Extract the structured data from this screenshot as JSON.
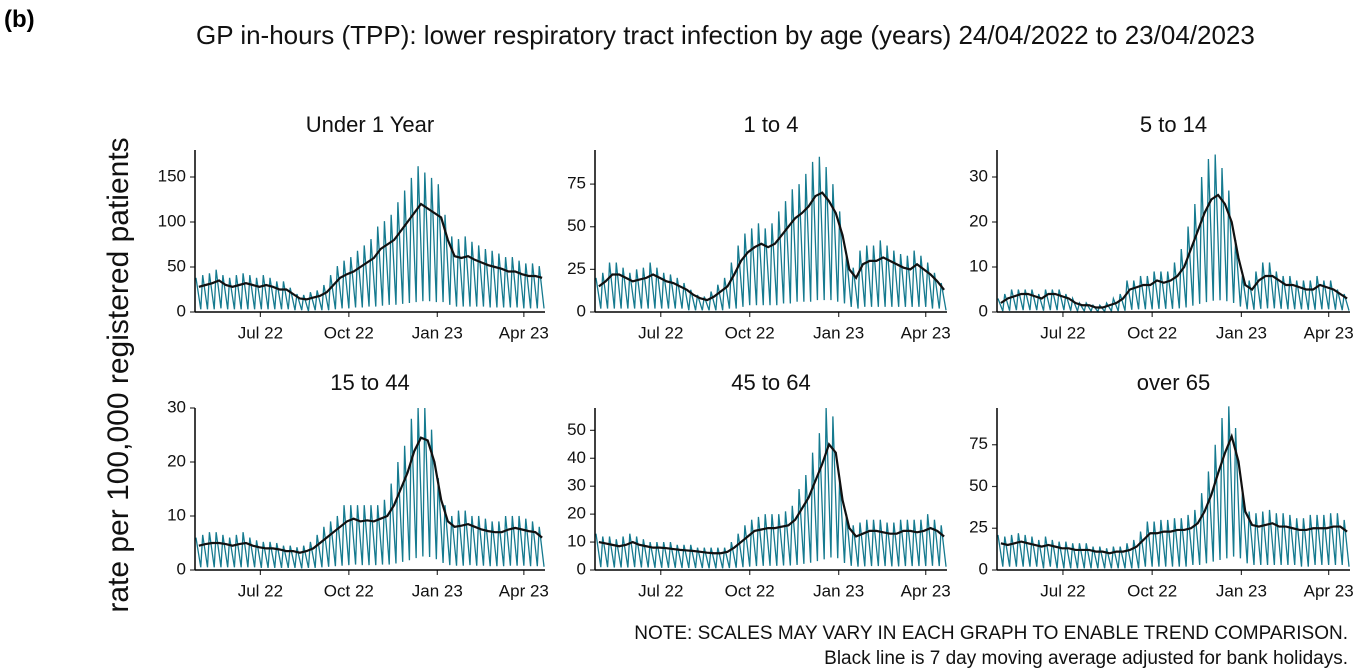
{
  "chart_data": {
    "type": "line",
    "panel_label": "(b)",
    "title": "GP in-hours (TPP): lower respiratory tract infection by age (years) 24/04/2022 to 23/04/2023",
    "ylabel": "rate per 100,000 registered patients",
    "notes": [
      "NOTE: SCALES MAY VARY IN EACH GRAPH TO ENABLE TREND COMPARISON.",
      "Black line is 7 day moving average adjusted for bank holidays."
    ],
    "daily_color": "#157a8f",
    "average_color": "#111111",
    "xlim": [
      0,
      364
    ],
    "xticks": [
      {
        "value": 68,
        "label": "Jul 22"
      },
      {
        "value": 160,
        "label": "Oct 22"
      },
      {
        "value": 252,
        "label": "Jan 23"
      },
      {
        "value": 342,
        "label": "Apr 23"
      }
    ],
    "x_daily": [
      1,
      6,
      8,
      13,
      15,
      20,
      22,
      27,
      29,
      34,
      36,
      41,
      43,
      48,
      50,
      55,
      57,
      62,
      64,
      69,
      71,
      76,
      78,
      83,
      85,
      90,
      92,
      97,
      99,
      104,
      106,
      111,
      113,
      118,
      120,
      125,
      127,
      132,
      134,
      139,
      141,
      146,
      148,
      153,
      155,
      160,
      162,
      167,
      169,
      174,
      176,
      181,
      183,
      188,
      190,
      195,
      197,
      202,
      204,
      209,
      211,
      216,
      218,
      223,
      225,
      230,
      232,
      237,
      239,
      244,
      246,
      251,
      253,
      258,
      260,
      265,
      267,
      272,
      274,
      279,
      281,
      286,
      288,
      293,
      295,
      300,
      302,
      307,
      309,
      314,
      316,
      321,
      323,
      328,
      330,
      335,
      337,
      342,
      344,
      349,
      351,
      356,
      358,
      363
    ],
    "x_weekly": [
      4,
      11,
      18,
      25,
      32,
      39,
      46,
      53,
      60,
      67,
      74,
      81,
      88,
      95,
      102,
      109,
      116,
      123,
      130,
      137,
      144,
      151,
      158,
      165,
      172,
      179,
      186,
      193,
      200,
      207,
      214,
      221,
      228,
      235,
      242,
      249,
      256,
      263,
      270,
      277,
      284,
      291,
      298,
      305,
      312,
      319,
      326,
      333,
      340,
      347,
      354,
      361
    ],
    "panels": [
      {
        "title": "Under 1 Year",
        "ylim": [
          0,
          180
        ],
        "yticks": [
          0,
          50,
          100,
          150
        ],
        "daily": [
          38,
          3,
          41,
          3,
          43,
          3,
          47,
          4,
          41,
          3,
          38,
          3,
          41,
          3,
          43,
          3,
          41,
          3,
          38,
          3,
          41,
          3,
          38,
          3,
          34,
          3,
          34,
          3,
          27,
          2,
          20,
          2,
          19,
          1,
          22,
          2,
          24,
          2,
          30,
          2,
          41,
          3,
          51,
          4,
          57,
          4,
          61,
          5,
          68,
          5,
          74,
          6,
          81,
          6,
          95,
          7,
          101,
          8,
          108,
          8,
          122,
          9,
          135,
          10,
          149,
          11,
          162,
          12,
          155,
          12,
          149,
          11,
          142,
          11,
          108,
          8,
          84,
          6,
          81,
          6,
          84,
          6,
          78,
          6,
          74,
          6,
          70,
          5,
          68,
          5,
          65,
          5,
          61,
          5,
          61,
          5,
          57,
          4,
          54,
          4,
          54,
          4,
          51,
          4
        ],
        "average": [
          28,
          30,
          32,
          35,
          30,
          28,
          30,
          32,
          30,
          28,
          30,
          28,
          25,
          25,
          20,
          15,
          14,
          16,
          18,
          22,
          30,
          38,
          42,
          45,
          50,
          55,
          60,
          70,
          75,
          80,
          90,
          100,
          110,
          120,
          115,
          110,
          105,
          80,
          62,
          60,
          62,
          58,
          55,
          52,
          50,
          48,
          45,
          45,
          42,
          40,
          40,
          38
        ]
      },
      {
        "title": "1 to 4",
        "ylim": [
          0,
          95
        ],
        "yticks": [
          0,
          25,
          50,
          75
        ],
        "daily": [
          20,
          2,
          23,
          2,
          29,
          2,
          29,
          2,
          26,
          2,
          23,
          2,
          25,
          2,
          26,
          2,
          29,
          2,
          26,
          2,
          23,
          2,
          22,
          2,
          20,
          2,
          17,
          1,
          13,
          1,
          10,
          1,
          9,
          1,
          12,
          1,
          16,
          1,
          20,
          2,
          29,
          2,
          39,
          3,
          46,
          4,
          49,
          4,
          52,
          4,
          49,
          4,
          52,
          4,
          59,
          5,
          65,
          5,
          72,
          6,
          75,
          6,
          81,
          6,
          88,
          7,
          91,
          7,
          85,
          7,
          75,
          6,
          59,
          5,
          33,
          3,
          26,
          2,
          36,
          3,
          39,
          3,
          39,
          3,
          42,
          3,
          39,
          3,
          36,
          3,
          34,
          3,
          33,
          3,
          36,
          3,
          33,
          3,
          29,
          2,
          23,
          2,
          17,
          1
        ],
        "average": [
          15,
          18,
          22,
          22,
          20,
          18,
          19,
          20,
          22,
          20,
          18,
          17,
          15,
          13,
          10,
          8,
          7,
          9,
          12,
          15,
          22,
          30,
          35,
          38,
          40,
          38,
          40,
          45,
          50,
          55,
          58,
          62,
          68,
          70,
          65,
          58,
          45,
          25,
          20,
          28,
          30,
          30,
          32,
          30,
          28,
          26,
          25,
          28,
          25,
          22,
          18,
          13
        ]
      },
      {
        "title": "5 to 14",
        "ylim": [
          0,
          36
        ],
        "yticks": [
          0,
          10,
          20,
          30
        ],
        "daily": [
          3,
          0.2,
          4,
          0.3,
          5,
          0.4,
          5,
          0.4,
          5,
          0.4,
          5,
          0.4,
          4,
          0.3,
          5,
          0.4,
          5,
          0.4,
          5,
          0.4,
          4,
          0.3,
          3,
          0.2,
          2,
          0.2,
          2,
          0.2,
          1.5,
          0.1,
          1.5,
          0.1,
          2,
          0.2,
          3,
          0.2,
          4,
          0.3,
          7,
          0.5,
          7,
          0.6,
          8,
          0.6,
          8,
          0.6,
          9,
          0.7,
          9,
          0.7,
          9,
          0.7,
          11,
          0.8,
          14,
          1,
          19,
          1.4,
          24,
          1.8,
          30,
          2.2,
          34,
          2.5,
          35,
          2.6,
          32,
          2.4,
          27,
          2,
          16,
          1.2,
          8,
          0.6,
          7,
          0.5,
          9,
          0.7,
          11,
          0.8,
          11,
          0.8,
          9,
          0.7,
          8,
          0.6,
          8,
          0.6,
          7,
          0.6,
          7,
          0.5,
          7,
          0.5,
          8,
          0.6,
          7,
          0.6,
          7,
          0.5,
          5,
          0.4,
          4,
          0.3
        ],
        "average": [
          2,
          3,
          3.5,
          4,
          4,
          3.5,
          3,
          4,
          4,
          3.5,
          3,
          2,
          1.5,
          1.5,
          1,
          1,
          1.5,
          2,
          3,
          5,
          5.5,
          6,
          6,
          7,
          6.5,
          7,
          8,
          10,
          14,
          18,
          22,
          25,
          26,
          24,
          20,
          12,
          6,
          5,
          7,
          8,
          8,
          7,
          6,
          6,
          5.5,
          5,
          5,
          6,
          5.5,
          5,
          4,
          3
        ]
      },
      {
        "title": "15 to 44",
        "ylim": [
          0,
          30
        ],
        "yticks": [
          0,
          10,
          20,
          30
        ],
        "daily": [
          6,
          0.5,
          6.5,
          0.5,
          7,
          0.5,
          7,
          0.5,
          6.5,
          0.5,
          6,
          0.5,
          6.5,
          0.5,
          7,
          0.5,
          6,
          0.5,
          5.5,
          0.4,
          5.2,
          0.4,
          5.2,
          0.4,
          5,
          0.4,
          4.5,
          0.4,
          4.5,
          0.4,
          4.2,
          0.3,
          4.5,
          0.4,
          5.2,
          0.4,
          6.5,
          0.5,
          8,
          0.6,
          9,
          0.7,
          10,
          0.8,
          12,
          0.9,
          12,
          1,
          12,
          0.9,
          12,
          0.9,
          12,
          0.9,
          12,
          1,
          13,
          1,
          16,
          1.2,
          20,
          1.5,
          23,
          1.8,
          28,
          2.2,
          30,
          2.5,
          30,
          2.4,
          26,
          2,
          17,
          1.3,
          12,
          0.9,
          10,
          0.8,
          11,
          0.8,
          11,
          0.9,
          10,
          0.8,
          10,
          0.8,
          9.5,
          0.7,
          9,
          0.7,
          9,
          0.7,
          10,
          0.8,
          10,
          0.8,
          10,
          0.8,
          9.5,
          0.7,
          9,
          0.7,
          8,
          0.6
        ],
        "average": [
          4.5,
          4.8,
          5,
          5,
          4.8,
          4.5,
          4.8,
          5,
          4.5,
          4.2,
          4,
          4,
          3.8,
          3.5,
          3.5,
          3.2,
          3.5,
          4,
          5,
          6,
          7,
          8,
          9,
          9.5,
          9,
          9.2,
          9,
          9.5,
          10,
          12,
          15,
          18,
          22,
          24.5,
          24,
          20,
          13,
          9,
          8,
          8.2,
          8.5,
          8,
          7.5,
          7.2,
          7,
          7,
          7.5,
          7.8,
          7.5,
          7.2,
          7,
          6
        ]
      },
      {
        "title": "45 to 64",
        "ylim": [
          0,
          58
        ],
        "yticks": [
          0,
          10,
          20,
          30,
          40,
          50
        ],
        "daily": [
          13,
          1,
          12,
          1,
          12,
          0.9,
          11,
          0.9,
          12,
          0.9,
          13,
          1,
          12,
          0.9,
          11,
          0.9,
          10,
          0.8,
          10,
          0.8,
          10,
          0.8,
          10,
          0.8,
          9,
          0.7,
          9,
          0.7,
          9,
          0.7,
          8,
          0.7,
          8,
          0.6,
          8,
          0.6,
          8,
          0.6,
          8,
          0.7,
          10,
          0.8,
          13,
          1,
          16,
          1.2,
          18,
          1.4,
          19,
          1.5,
          20,
          1.5,
          20,
          1.5,
          20,
          1.6,
          21,
          1.6,
          23,
          1.8,
          29,
          2.2,
          34,
          2.6,
          42,
          3.2,
          49,
          3.8,
          58,
          4.5,
          55,
          4.2,
          33,
          2.5,
          20,
          1.5,
          16,
          1.2,
          17,
          1.3,
          18,
          1.4,
          18,
          1.4,
          18,
          1.4,
          17,
          1.3,
          17,
          1.3,
          18,
          1.4,
          18,
          1.4,
          18,
          1.4,
          18,
          1.4,
          20,
          1.5,
          18,
          1.4,
          16,
          1.2
        ],
        "average": [
          10,
          9.5,
          9,
          8.5,
          9,
          10,
          9,
          8.5,
          8,
          8,
          7.8,
          7.5,
          7.2,
          7,
          6.8,
          6.5,
          6.2,
          6,
          6,
          6.5,
          8,
          10,
          12,
          14,
          14.5,
          15,
          15,
          15.5,
          16,
          18,
          22,
          26,
          32,
          38,
          45,
          42,
          25,
          15,
          12,
          13,
          14,
          14,
          13.5,
          13,
          13,
          14,
          14,
          13.5,
          14,
          15,
          14,
          12
        ]
      },
      {
        "title": "over 65",
        "ylim": [
          0,
          97
        ],
        "yticks": [
          0,
          25,
          50,
          75
        ],
        "daily": [
          21,
          2,
          20,
          2,
          21,
          2,
          22,
          2,
          21,
          2,
          20,
          2,
          18,
          1,
          20,
          2,
          18,
          1,
          17,
          1,
          17,
          1,
          16,
          1,
          16,
          1,
          16,
          1,
          14,
          1,
          14,
          1,
          13,
          1,
          14,
          1,
          14,
          1,
          16,
          1,
          18,
          1,
          23,
          2,
          29,
          2,
          29,
          2,
          30,
          2,
          30,
          2,
          31,
          2,
          31,
          2,
          33,
          3,
          36,
          3,
          46,
          4,
          59,
          5,
          75,
          6,
          91,
          7,
          98,
          8,
          85,
          7,
          46,
          4,
          35,
          3,
          34,
          3,
          35,
          3,
          36,
          3,
          34,
          3,
          34,
          3,
          33,
          3,
          31,
          2,
          31,
          2,
          33,
          3,
          33,
          3,
          33,
          3,
          34,
          3,
          34,
          3,
          30,
          2
        ],
        "average": [
          16,
          15,
          16,
          17,
          16,
          15,
          14,
          15,
          14,
          13,
          13,
          12,
          12,
          12,
          11,
          11,
          10,
          11,
          11,
          12,
          14,
          18,
          22,
          22,
          23,
          23,
          24,
          24,
          25,
          28,
          35,
          45,
          58,
          70,
          80,
          65,
          35,
          27,
          26,
          27,
          28,
          26,
          26,
          25,
          24,
          24,
          25,
          25,
          25,
          26,
          26,
          23
        ]
      }
    ]
  }
}
